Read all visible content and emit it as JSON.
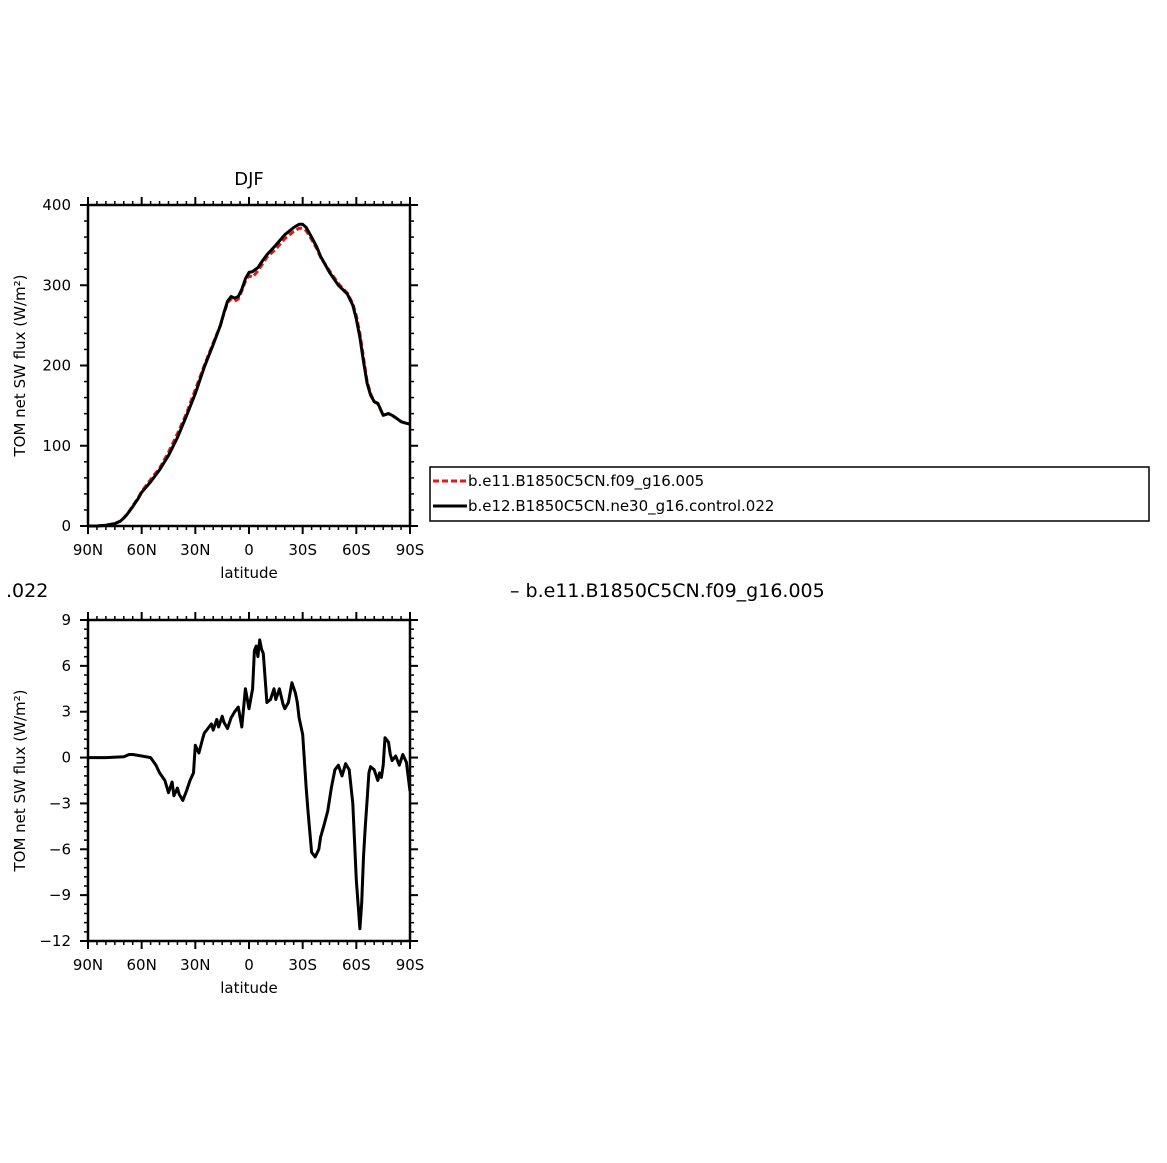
{
  "chart_data": [
    {
      "type": "line",
      "title": "DJF",
      "xlabel": "latitude",
      "ylabel": "TOM net SW flux (W/m²)",
      "xlim": [
        90,
        -90
      ],
      "ylim": [
        0,
        400
      ],
      "xticks": [
        90,
        60,
        30,
        0,
        -30,
        -60,
        -90
      ],
      "xtick_labels": [
        "90N",
        "60N",
        "30N",
        "0",
        "30S",
        "60S",
        "90S"
      ],
      "yticks": [
        0,
        100,
        200,
        300,
        400
      ],
      "ytick_labels": [
        "0",
        "100",
        "200",
        "300",
        "400"
      ],
      "grid": false,
      "legend_position": "right",
      "series": [
        {
          "name": "b.e11.B1850C5CN.f09_g16.005",
          "color": "#e31a1c",
          "style": "dashed",
          "x": [
            90,
            85,
            80,
            75,
            72,
            70,
            68,
            65,
            62,
            60,
            55,
            50,
            45,
            40,
            35,
            30,
            25,
            20,
            16,
            14,
            12,
            10,
            8,
            6,
            4,
            2,
            0,
            -2,
            -5,
            -8,
            -10,
            -15,
            -20,
            -25,
            -28,
            -30,
            -32,
            -35,
            -38,
            -40,
            -45,
            -50,
            -55,
            -58,
            -60,
            -62,
            -64,
            -66,
            -68,
            -70,
            -72,
            -75,
            -78,
            -80,
            -82,
            -85,
            -88,
            -90
          ],
          "y": [
            0,
            0,
            1,
            3,
            6,
            10,
            15,
            25,
            35,
            43,
            58,
            72,
            92,
            115,
            140,
            170,
            200,
            228,
            250,
            265,
            278,
            283,
            280,
            283,
            293,
            305,
            312,
            310,
            318,
            328,
            335,
            345,
            358,
            367,
            371,
            371,
            368,
            357,
            345,
            335,
            318,
            302,
            290,
            277,
            262,
            240,
            210,
            180,
            165,
            155,
            152,
            138,
            140,
            138,
            135,
            130,
            128,
            127
          ]
        },
        {
          "name": "b.e12.B1850C5CN.ne30_g16.control.022",
          "color": "#000000",
          "style": "solid",
          "x": [
            90,
            85,
            80,
            75,
            72,
            70,
            68,
            65,
            62,
            60,
            55,
            50,
            45,
            40,
            35,
            30,
            25,
            20,
            16,
            14,
            12,
            10,
            8,
            6,
            4,
            2,
            0,
            -2,
            -5,
            -8,
            -10,
            -15,
            -20,
            -25,
            -28,
            -30,
            -32,
            -35,
            -38,
            -40,
            -45,
            -50,
            -55,
            -58,
            -60,
            -62,
            -64,
            -66,
            -68,
            -70,
            -72,
            -75,
            -78,
            -80,
            -82,
            -85,
            -88,
            -90
          ],
          "y": [
            0,
            0,
            1,
            3,
            6,
            10,
            15,
            24,
            34,
            42,
            55,
            70,
            88,
            110,
            137,
            165,
            198,
            226,
            250,
            266,
            280,
            286,
            284,
            286,
            295,
            308,
            316,
            317,
            322,
            332,
            338,
            350,
            363,
            372,
            376,
            376,
            372,
            360,
            347,
            336,
            316,
            300,
            289,
            275,
            258,
            235,
            205,
            178,
            163,
            155,
            153,
            138,
            140,
            138,
            135,
            130,
            128,
            127
          ]
        }
      ]
    },
    {
      "type": "line",
      "title": "",
      "xlabel": "latitude",
      "ylabel": "TOM net SW flux (W/m²)",
      "xlim": [
        90,
        -90
      ],
      "ylim": [
        -12,
        9
      ],
      "xticks": [
        90,
        60,
        30,
        0,
        -30,
        -60,
        -90
      ],
      "xtick_labels": [
        "90N",
        "60N",
        "30N",
        "0",
        "30S",
        "60S",
        "90S"
      ],
      "yticks": [
        9,
        6,
        3,
        0,
        -3,
        -6,
        -9,
        -12
      ],
      "ytick_labels": [
        "9",
        "6",
        "3",
        "0",
        "−3",
        "−6",
        "−9",
        "−12"
      ],
      "grid": false,
      "series": [
        {
          "color": "#000000",
          "style": "solid",
          "x": [
            90,
            80,
            70,
            67,
            65,
            60,
            55,
            52,
            50,
            47,
            45,
            43,
            42,
            40,
            39,
            37,
            35,
            33,
            31,
            30,
            28,
            26,
            25,
            23,
            21,
            20,
            18,
            17,
            15,
            14,
            12,
            10,
            8,
            6,
            4,
            2,
            0,
            -2,
            -3,
            -4,
            -5,
            -6,
            -7,
            -8,
            -10,
            -12,
            -14,
            -15,
            -17,
            -19,
            -20,
            -22,
            -24,
            -26,
            -27,
            -28,
            -30,
            -32,
            -33,
            -35,
            -37,
            -39,
            -40,
            -42,
            -44,
            -46,
            -48,
            -50,
            -52,
            -54,
            -56,
            -58,
            -60,
            -62,
            -63,
            -64,
            -65,
            -66,
            -67,
            -68,
            -70,
            -72,
            -73,
            -74,
            -75,
            -76,
            -78,
            -79,
            -80,
            -82,
            -84,
            -86,
            -88,
            -90
          ],
          "y": [
            0,
            0,
            0.05,
            0.2,
            0.2,
            0.1,
            0,
            -0.5,
            -1.0,
            -1.5,
            -2.3,
            -1.6,
            -2.5,
            -2.0,
            -2.4,
            -2.8,
            -2.2,
            -1.5,
            -1.0,
            0.8,
            0.3,
            1.2,
            1.6,
            1.9,
            2.2,
            1.8,
            2.5,
            2.0,
            2.7,
            2.3,
            1.9,
            2.6,
            3.0,
            3.3,
            2.0,
            4.5,
            3.2,
            4.5,
            7.0,
            7.3,
            6.6,
            7.7,
            7.1,
            6.8,
            3.6,
            3.8,
            4.5,
            3.8,
            4.5,
            3.5,
            3.2,
            3.6,
            4.9,
            4.2,
            3.6,
            2.6,
            1.5,
            -2.0,
            -3.5,
            -6.2,
            -6.5,
            -6.0,
            -5.2,
            -4.4,
            -3.5,
            -2.0,
            -0.8,
            -0.5,
            -1.2,
            -0.4,
            -0.8,
            -3.0,
            -8.0,
            -11.2,
            -9.5,
            -6.5,
            -4.5,
            -2.8,
            -1.0,
            -0.6,
            -0.8,
            -1.5,
            -1.0,
            -1.3,
            -0.5,
            1.3,
            1.0,
            0.2,
            -0.2,
            0.1,
            -0.5,
            0.2,
            -0.3,
            -2.2
          ]
        }
      ]
    }
  ],
  "floating_text": {
    "left_fragment": ".022",
    "right_fragment": "–  b.e11.B1850C5CN.f09_g16.005"
  }
}
